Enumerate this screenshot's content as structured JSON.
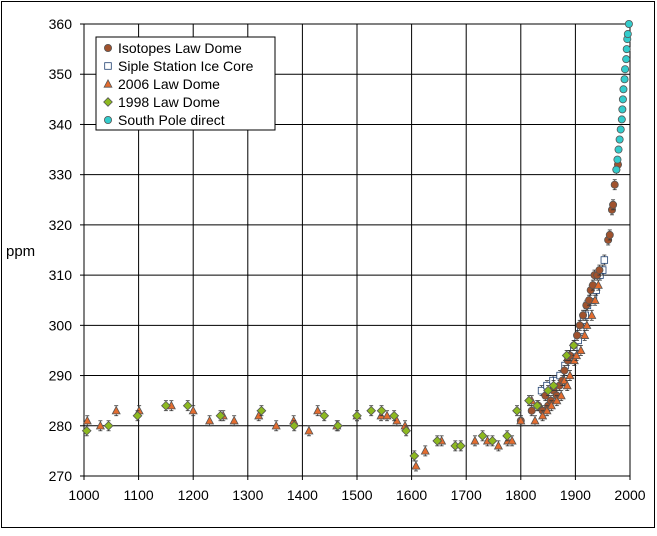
{
  "chart_data": {
    "type": "scatter",
    "title": "",
    "xlabel": "",
    "ylabel": "ppm",
    "xlim": [
      1000,
      2000
    ],
    "ylim": [
      270,
      360
    ],
    "x_ticks": [
      "1000",
      "1100",
      "1200",
      "1300",
      "1400",
      "1500",
      "1600",
      "1700",
      "1800",
      "1900",
      "2000"
    ],
    "y_ticks": [
      "270",
      "280",
      "290",
      "300",
      "310",
      "320",
      "330",
      "340",
      "350",
      "360"
    ],
    "grid": true,
    "legend_position": "top-left",
    "series": [
      {
        "name": "Isotopes Law Dome",
        "marker": "circle",
        "color": "#A0522D",
        "points": [
          [
            1800,
            281
          ],
          [
            1820,
            283
          ],
          [
            1832,
            284
          ],
          [
            1840,
            283
          ],
          [
            1845,
            286
          ],
          [
            1850,
            284
          ],
          [
            1855,
            285
          ],
          [
            1860,
            287
          ],
          [
            1866,
            286
          ],
          [
            1871,
            288
          ],
          [
            1876,
            289
          ],
          [
            1880,
            291
          ],
          [
            1886,
            293
          ],
          [
            1890,
            294
          ],
          [
            1897,
            296
          ],
          [
            1903,
            298
          ],
          [
            1908,
            300
          ],
          [
            1914,
            302
          ],
          [
            1920,
            304
          ],
          [
            1925,
            305
          ],
          [
            1928,
            307
          ],
          [
            1932,
            308
          ],
          [
            1935,
            310
          ],
          [
            1940,
            310
          ],
          [
            1944,
            311
          ],
          [
            1960,
            317
          ],
          [
            1963,
            318
          ],
          [
            1967,
            323
          ],
          [
            1969,
            324
          ],
          [
            1972,
            328
          ],
          [
            1975,
            331
          ],
          [
            1978,
            332
          ]
        ]
      },
      {
        "name": "Siple Station Ice Core",
        "marker": "square",
        "color": "#FFFFFF",
        "points": [
          [
            1838,
            287
          ],
          [
            1848,
            288
          ],
          [
            1859,
            289
          ],
          [
            1866,
            289
          ],
          [
            1872,
            290
          ],
          [
            1881,
            292
          ],
          [
            1889,
            294
          ],
          [
            1897,
            295
          ],
          [
            1905,
            297
          ],
          [
            1910,
            299
          ],
          [
            1915,
            301
          ],
          [
            1918,
            302
          ],
          [
            1922,
            304
          ],
          [
            1928,
            305
          ],
          [
            1933,
            306
          ],
          [
            1938,
            307
          ],
          [
            1945,
            310
          ],
          [
            1950,
            311
          ],
          [
            1953,
            313
          ]
        ]
      },
      {
        "name": "2006 Law Dome",
        "marker": "triangle",
        "color": "#E46C2E",
        "points": [
          [
            1006,
            281
          ],
          [
            1030,
            280
          ],
          [
            1059,
            283
          ],
          [
            1101,
            283
          ],
          [
            1160,
            284
          ],
          [
            1200,
            283
          ],
          [
            1230,
            281
          ],
          [
            1255,
            282
          ],
          [
            1275,
            281
          ],
          [
            1320,
            282
          ],
          [
            1352,
            280
          ],
          [
            1384,
            281
          ],
          [
            1412,
            279
          ],
          [
            1428,
            283
          ],
          [
            1463,
            280
          ],
          [
            1500,
            282
          ],
          [
            1544,
            282
          ],
          [
            1555,
            282
          ],
          [
            1573,
            281
          ],
          [
            1588,
            280
          ],
          [
            1608,
            272
          ],
          [
            1625,
            275
          ],
          [
            1655,
            277
          ],
          [
            1716,
            277
          ],
          [
            1739,
            277
          ],
          [
            1759,
            276
          ],
          [
            1776,
            277
          ],
          [
            1784,
            277
          ],
          [
            1800,
            281
          ],
          [
            1820,
            285
          ],
          [
            1826,
            281
          ],
          [
            1840,
            282
          ],
          [
            1848,
            283
          ],
          [
            1856,
            284
          ],
          [
            1866,
            285
          ],
          [
            1874,
            286
          ],
          [
            1880,
            289
          ],
          [
            1885,
            288
          ],
          [
            1890,
            290
          ],
          [
            1898,
            293
          ],
          [
            1902,
            294
          ],
          [
            1910,
            295
          ],
          [
            1917,
            298
          ],
          [
            1921,
            300
          ],
          [
            1930,
            302
          ],
          [
            1936,
            305
          ],
          [
            1942,
            308
          ]
        ]
      },
      {
        "name": "1998 Law Dome",
        "marker": "diamond",
        "color": "#8DB920",
        "points": [
          [
            1005,
            279
          ],
          [
            1045,
            280
          ],
          [
            1098,
            282
          ],
          [
            1150,
            284
          ],
          [
            1190,
            284
          ],
          [
            1250,
            282
          ],
          [
            1325,
            283
          ],
          [
            1385,
            280
          ],
          [
            1440,
            282
          ],
          [
            1465,
            280
          ],
          [
            1500,
            282
          ],
          [
            1526,
            283
          ],
          [
            1545,
            283
          ],
          [
            1568,
            282
          ],
          [
            1590,
            279
          ],
          [
            1605,
            274
          ],
          [
            1647,
            277
          ],
          [
            1680,
            276
          ],
          [
            1690,
            276
          ],
          [
            1730,
            278
          ],
          [
            1748,
            277
          ],
          [
            1775,
            278
          ],
          [
            1793,
            283
          ],
          [
            1815,
            285
          ],
          [
            1830,
            284
          ],
          [
            1850,
            287
          ],
          [
            1860,
            288
          ],
          [
            1884,
            294
          ],
          [
            1897,
            296
          ]
        ]
      },
      {
        "name": "South Pole direct",
        "marker": "circle",
        "color": "#33CCCC",
        "points": [
          [
            1975,
            331
          ],
          [
            1977,
            333
          ],
          [
            1979,
            335
          ],
          [
            1981,
            337
          ],
          [
            1983,
            339
          ],
          [
            1985,
            341
          ],
          [
            1986,
            343
          ],
          [
            1987,
            345
          ],
          [
            1988,
            347
          ],
          [
            1990,
            349
          ],
          [
            1991,
            351
          ],
          [
            1993,
            353
          ],
          [
            1994,
            355
          ],
          [
            1995,
            357
          ],
          [
            1996,
            358
          ],
          [
            1998,
            360
          ]
        ]
      }
    ]
  }
}
